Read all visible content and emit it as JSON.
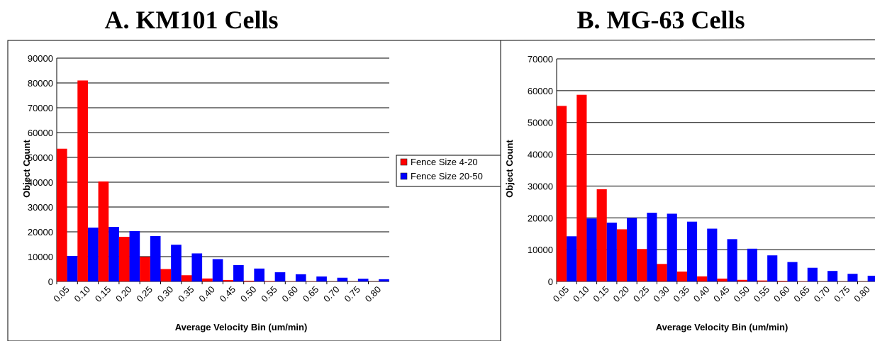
{
  "chart_data": [
    {
      "type": "bar",
      "title": "A. KM101 Cells",
      "xlabel": "Average Velocity Bin (um/min)",
      "ylabel": "Object Count",
      "ylim": [
        0,
        90000
      ],
      "yticks": [
        0,
        10000,
        20000,
        30000,
        40000,
        50000,
        60000,
        70000,
        80000,
        90000
      ],
      "grid": "horizontal",
      "categories": [
        "0.05",
        "0.10",
        "0.15",
        "0.20",
        "0.25",
        "0.30",
        "0.35",
        "0.40",
        "0.45",
        "0.50",
        "0.55",
        "0.60",
        "0.65",
        "0.70",
        "0.75",
        "0.80"
      ],
      "series": [
        {
          "name": "Fence Size 4-20",
          "color": "#ff0000",
          "values": [
            53500,
            81000,
            40300,
            18000,
            9900,
            5000,
            2500,
            1200,
            600,
            300,
            200,
            100,
            100,
            50,
            50,
            50
          ]
        },
        {
          "name": "Fence Size 20-50",
          "color": "#0000ff",
          "values": [
            10300,
            21700,
            22000,
            20300,
            18300,
            14800,
            11300,
            9000,
            6600,
            5200,
            3700,
            2900,
            2000,
            1500,
            1100,
            900
          ]
        }
      ],
      "legend": "right"
    },
    {
      "type": "bar",
      "title": "B. MG-63 Cells",
      "xlabel": "Average Velocity Bin (um/min)",
      "ylabel": "Object Count",
      "ylim": [
        0,
        70000
      ],
      "yticks": [
        0,
        10000,
        20000,
        30000,
        40000,
        50000,
        60000,
        70000
      ],
      "grid": "horizontal",
      "categories": [
        "0.05",
        "0.10",
        "0.15",
        "0.20",
        "0.25",
        "0.30",
        "0.35",
        "0.40",
        "0.45",
        "0.50",
        "0.55",
        "0.60",
        "0.65",
        "0.70",
        "0.75",
        "0.80"
      ],
      "series": [
        {
          "name": "Fence Size 4-20",
          "color": "#ff0000",
          "values": [
            55200,
            58700,
            29000,
            16400,
            10200,
            5500,
            3100,
            1600,
            900,
            500,
            300,
            200,
            100,
            50,
            50,
            50
          ]
        },
        {
          "name": "Fence Size 20-50",
          "color": "#0000ff",
          "values": [
            14200,
            19800,
            18500,
            20000,
            21600,
            21300,
            18800,
            16600,
            13300,
            10300,
            8200,
            6100,
            4300,
            3300,
            2400,
            1800
          ]
        }
      ]
    }
  ]
}
